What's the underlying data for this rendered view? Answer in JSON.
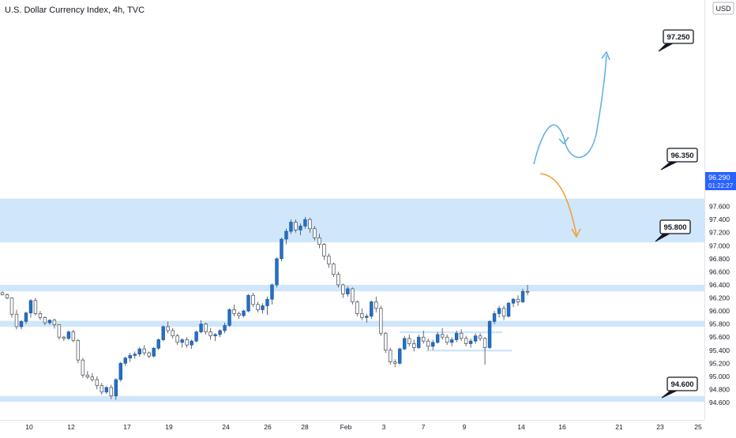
{
  "header": {
    "title": "U.S. Dollar Currency Index, 4h, TVC"
  },
  "currency": {
    "code": "USD"
  },
  "price_tag": {
    "price": "96.290",
    "countdown": "01:22:27"
  },
  "chart_data": {
    "type": "candlestick",
    "title": "U.S. Dollar Currency Index, 4h, TVC",
    "ylim": [
      94.5,
      97.6
    ],
    "y_ticks": [
      "94.600",
      "94.800",
      "95.000",
      "95.200",
      "95.400",
      "95.600",
      "95.800",
      "96.000",
      "96.200",
      "96.400",
      "96.600",
      "96.800",
      "97.000",
      "97.200",
      "97.400",
      "97.600"
    ],
    "x_ticks": [
      "10",
      "12",
      "17",
      "19",
      "24",
      "26",
      "28",
      "Feb",
      "3",
      "7",
      "9",
      "14",
      "16",
      "21",
      "23",
      "25"
    ],
    "zones": [
      {
        "from": 97.05,
        "to": 97.72
      },
      {
        "from": 96.3,
        "to": 96.4
      },
      {
        "from": 95.76,
        "to": 95.85
      },
      {
        "from": 94.61,
        "to": 94.7
      },
      {
        "from": 95.66,
        "to": 95.69
      },
      {
        "from": 95.38,
        "to": 95.41
      }
    ],
    "annotations": [
      {
        "label": "97.250",
        "value": 97.25
      },
      {
        "label": "96.350",
        "value": 96.35
      },
      {
        "label": "95.800",
        "value": 95.8
      },
      {
        "label": "94.600",
        "value": 94.6
      }
    ],
    "candles": [
      [
        96.28,
        96.3,
        96.24,
        96.25
      ],
      [
        96.25,
        96.27,
        96.18,
        96.2
      ],
      [
        96.2,
        96.21,
        95.9,
        95.95
      ],
      [
        95.95,
        96.02,
        95.72,
        95.76
      ],
      [
        95.76,
        95.86,
        95.72,
        95.84
      ],
      [
        95.84,
        95.99,
        95.8,
        95.97
      ],
      [
        95.97,
        96.18,
        95.9,
        96.16
      ],
      [
        96.16,
        96.2,
        95.93,
        95.96
      ],
      [
        95.96,
        96.0,
        95.86,
        95.9
      ],
      [
        95.9,
        95.92,
        95.78,
        95.82
      ],
      [
        95.82,
        95.87,
        95.79,
        95.86
      ],
      [
        95.86,
        95.88,
        95.73,
        95.79
      ],
      [
        95.79,
        95.8,
        95.56,
        95.6
      ],
      [
        95.6,
        95.62,
        95.54,
        95.58
      ],
      [
        95.58,
        95.7,
        95.56,
        95.68
      ],
      [
        95.68,
        95.71,
        95.52,
        95.55
      ],
      [
        95.55,
        95.57,
        95.2,
        95.25
      ],
      [
        95.25,
        95.28,
        94.98,
        95.02
      ],
      [
        95.02,
        95.08,
        94.96,
        94.99
      ],
      [
        94.99,
        95.05,
        94.92,
        94.95
      ],
      [
        94.95,
        95.0,
        94.8,
        94.86
      ],
      [
        94.86,
        94.9,
        94.72,
        94.76
      ],
      [
        94.76,
        94.85,
        94.73,
        94.83
      ],
      [
        94.83,
        94.87,
        94.65,
        94.7
      ],
      [
        94.7,
        94.97,
        94.64,
        94.95
      ],
      [
        94.95,
        95.22,
        94.92,
        95.2
      ],
      [
        95.2,
        95.3,
        95.16,
        95.28
      ],
      [
        95.28,
        95.36,
        95.22,
        95.32
      ],
      [
        95.32,
        95.38,
        95.27,
        95.34
      ],
      [
        95.34,
        95.45,
        95.3,
        95.42
      ],
      [
        95.42,
        95.48,
        95.32,
        95.36
      ],
      [
        95.36,
        95.38,
        95.28,
        95.31
      ],
      [
        95.31,
        95.45,
        95.29,
        95.43
      ],
      [
        95.43,
        95.58,
        95.4,
        95.56
      ],
      [
        95.56,
        95.78,
        95.54,
        95.76
      ],
      [
        95.76,
        95.84,
        95.66,
        95.7
      ],
      [
        95.7,
        95.74,
        95.58,
        95.62
      ],
      [
        95.62,
        95.65,
        95.48,
        95.52
      ],
      [
        95.52,
        95.58,
        95.44,
        95.56
      ],
      [
        95.56,
        95.6,
        95.44,
        95.48
      ],
      [
        95.48,
        95.56,
        95.42,
        95.54
      ],
      [
        95.54,
        95.7,
        95.52,
        95.68
      ],
      [
        95.68,
        95.86,
        95.66,
        95.8
      ],
      [
        95.8,
        95.82,
        95.64,
        95.68
      ],
      [
        95.68,
        95.74,
        95.56,
        95.62
      ],
      [
        95.62,
        95.66,
        95.54,
        95.64
      ],
      [
        95.64,
        95.72,
        95.6,
        95.7
      ],
      [
        95.7,
        95.82,
        95.66,
        95.78
      ],
      [
        95.78,
        96.04,
        95.76,
        96.02
      ],
      [
        96.02,
        96.1,
        95.92,
        95.96
      ],
      [
        95.96,
        95.99,
        95.88,
        95.93
      ],
      [
        95.93,
        96.02,
        95.9,
        96.0
      ],
      [
        96.0,
        96.26,
        95.98,
        96.24
      ],
      [
        96.24,
        96.28,
        96.06,
        96.1
      ],
      [
        96.1,
        96.14,
        95.98,
        96.02
      ],
      [
        96.02,
        96.12,
        95.96,
        96.08
      ],
      [
        96.08,
        96.22,
        95.94,
        96.18
      ],
      [
        96.18,
        96.42,
        96.1,
        96.4
      ],
      [
        96.4,
        96.82,
        96.36,
        96.8
      ],
      [
        96.8,
        97.12,
        96.76,
        97.1
      ],
      [
        97.1,
        97.26,
        97.02,
        97.22
      ],
      [
        97.22,
        97.4,
        97.18,
        97.36
      ],
      [
        97.36,
        97.4,
        97.2,
        97.24
      ],
      [
        97.24,
        97.34,
        97.16,
        97.3
      ],
      [
        97.3,
        97.44,
        97.26,
        97.4
      ],
      [
        97.4,
        97.43,
        97.2,
        97.26
      ],
      [
        97.26,
        97.3,
        97.08,
        97.12
      ],
      [
        97.12,
        97.18,
        96.96,
        97.02
      ],
      [
        97.02,
        97.04,
        96.78,
        96.84
      ],
      [
        96.84,
        96.88,
        96.66,
        96.72
      ],
      [
        96.72,
        96.74,
        96.52,
        96.56
      ],
      [
        96.56,
        96.6,
        96.36,
        96.4
      ],
      [
        96.4,
        96.42,
        96.2,
        96.26
      ],
      [
        96.26,
        96.38,
        96.22,
        96.34
      ],
      [
        96.34,
        96.36,
        96.1,
        96.14
      ],
      [
        96.14,
        96.16,
        95.92,
        95.96
      ],
      [
        95.96,
        96.04,
        95.86,
        95.9
      ],
      [
        95.9,
        95.96,
        95.82,
        95.92
      ],
      [
        95.92,
        96.16,
        95.88,
        96.14
      ],
      [
        96.14,
        96.22,
        95.98,
        96.04
      ],
      [
        96.04,
        96.08,
        95.62,
        95.66
      ],
      [
        95.66,
        95.68,
        95.36,
        95.4
      ],
      [
        95.4,
        95.44,
        95.18,
        95.22
      ],
      [
        95.22,
        95.26,
        95.14,
        95.2
      ],
      [
        95.2,
        95.44,
        95.18,
        95.42
      ],
      [
        95.42,
        95.62,
        95.4,
        95.58
      ],
      [
        95.58,
        95.64,
        95.46,
        95.5
      ],
      [
        95.5,
        95.56,
        95.38,
        95.44
      ],
      [
        95.44,
        95.64,
        95.42,
        95.6
      ],
      [
        95.6,
        95.7,
        95.5,
        95.54
      ],
      [
        95.54,
        95.58,
        95.4,
        95.46
      ],
      [
        95.46,
        95.56,
        95.4,
        95.52
      ],
      [
        95.52,
        95.68,
        95.5,
        95.64
      ],
      [
        95.64,
        95.74,
        95.56,
        95.6
      ],
      [
        95.6,
        95.64,
        95.48,
        95.52
      ],
      [
        95.52,
        95.6,
        95.46,
        95.56
      ],
      [
        95.56,
        95.7,
        95.52,
        95.66
      ],
      [
        95.66,
        95.72,
        95.54,
        95.58
      ],
      [
        95.58,
        95.62,
        95.46,
        95.5
      ],
      [
        95.5,
        95.58,
        95.44,
        95.54
      ],
      [
        95.54,
        95.66,
        95.5,
        95.62
      ],
      [
        95.62,
        95.66,
        95.54,
        95.58
      ],
      [
        95.58,
        95.6,
        95.18,
        95.44
      ],
      [
        95.44,
        95.86,
        95.42,
        95.84
      ],
      [
        95.84,
        96.0,
        95.8,
        95.96
      ],
      [
        95.96,
        96.08,
        95.9,
        96.04
      ],
      [
        96.04,
        96.08,
        95.86,
        95.92
      ],
      [
        95.92,
        96.14,
        95.9,
        96.12
      ],
      [
        96.12,
        96.2,
        96.06,
        96.18
      ],
      [
        96.18,
        96.24,
        96.08,
        96.14
      ],
      [
        96.14,
        96.34,
        96.12,
        96.3
      ],
      [
        96.3,
        96.4,
        96.24,
        96.29
      ]
    ]
  }
}
